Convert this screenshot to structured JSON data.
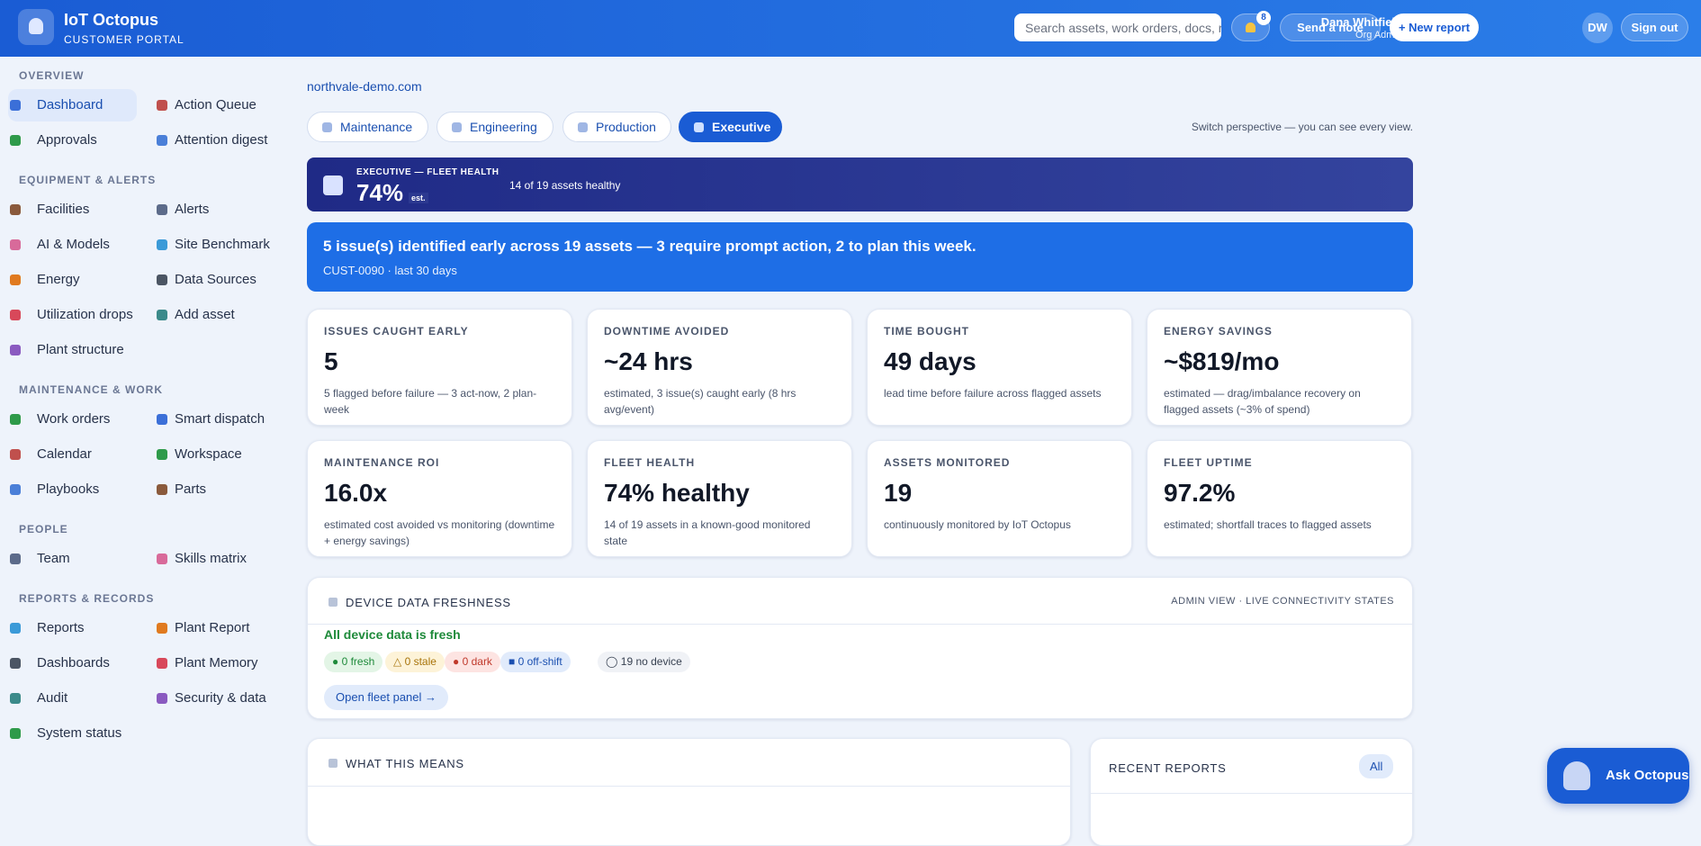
{
  "header": {
    "title": "IoT Octopus",
    "subtitle": "CUSTOMER PORTAL",
    "search_placeholder": "Search assets, work orders, docs, r",
    "notification_count": 8,
    "send_note": "Send a note",
    "new_report": "+ New report",
    "user_name": "Dana Whitfield",
    "user_role": "Org Admin",
    "user_initials": "DW",
    "sign_out": "Sign out"
  },
  "sidebar": {
    "sections": [
      {
        "title": "OVERVIEW",
        "items": [
          "Dashboard",
          "Action Queue",
          "Approvals",
          "Attention digest"
        ]
      },
      {
        "title": "EQUIPMENT & ALERTS",
        "items": [
          "Facilities",
          "Alerts",
          "AI & Models",
          "Site Benchmark",
          "Energy",
          "Data Sources",
          "Utilization drops",
          "Add asset",
          "Plant structure"
        ]
      },
      {
        "title": "MAINTENANCE & WORK",
        "items": [
          "Work orders",
          "Smart dispatch",
          "Calendar",
          "Workspace",
          "Playbooks",
          "Parts"
        ]
      },
      {
        "title": "PEOPLE",
        "items": [
          "Team",
          "Skills matrix"
        ]
      },
      {
        "title": "REPORTS & RECORDS",
        "items": [
          "Reports",
          "Plant Report",
          "Dashboards",
          "Plant Memory",
          "Audit",
          "Security & data",
          "System status"
        ]
      }
    ]
  },
  "main": {
    "domain": "northvale-demo.com",
    "tabs": [
      "Maintenance",
      "Engineering",
      "Production",
      "Executive"
    ],
    "tabs_hint": "Switch perspective — you can see every view.",
    "banner": {
      "label": "EXECUTIVE — FLEET HEALTH",
      "value": "74%",
      "suffix": "est.",
      "note": "14 of 19 assets healthy"
    },
    "summary": {
      "headline": "5 issue(s) identified early across 19 assets — 3 require prompt action, 2 to plan this week.",
      "sub": "CUST-0090 · last 30 days"
    },
    "kpis": [
      {
        "label": "ISSUES CAUGHT EARLY",
        "value": "5",
        "note": "5 flagged before failure — 3 act-now, 2 plan-week"
      },
      {
        "label": "DOWNTIME AVOIDED",
        "value": "~24 hrs",
        "note": "estimated, 3 issue(s) caught early (8 hrs avg/event)"
      },
      {
        "label": "TIME BOUGHT",
        "value": "49 days",
        "note": "lead time before failure across flagged assets"
      },
      {
        "label": "ENERGY SAVINGS",
        "value": "~$819/mo",
        "note": "estimated — drag/imbalance recovery on flagged assets (~3% of spend)"
      },
      {
        "label": "MAINTENANCE ROI",
        "value": "16.0x",
        "note": "estimated cost avoided vs monitoring (downtime + energy savings)"
      },
      {
        "label": "FLEET HEALTH",
        "value": "74% healthy",
        "note": "14 of 19 assets in a known-good monitored state"
      },
      {
        "label": "ASSETS MONITORED",
        "value": "19",
        "note": "continuously monitored by IoT Octopus"
      },
      {
        "label": "FLEET UPTIME",
        "value": "97.2%",
        "note": "estimated; shortfall traces to flagged assets"
      }
    ],
    "freshness": {
      "title": "DEVICE DATA FRESHNESS",
      "scope": "ADMIN VIEW · LIVE CONNECTIVITY STATES",
      "status": "All device data is fresh",
      "chips": [
        "● 0 fresh",
        "△ 0 stale",
        "● 0 dark",
        "■ 0 off-shift",
        "◯ 19 no device"
      ],
      "button": "Open fleet panel →"
    },
    "meaning_title": "WHAT THIS MEANS",
    "reports_title": "RECENT REPORTS",
    "reports_all": "All"
  },
  "assistant": "Ask Octopus"
}
